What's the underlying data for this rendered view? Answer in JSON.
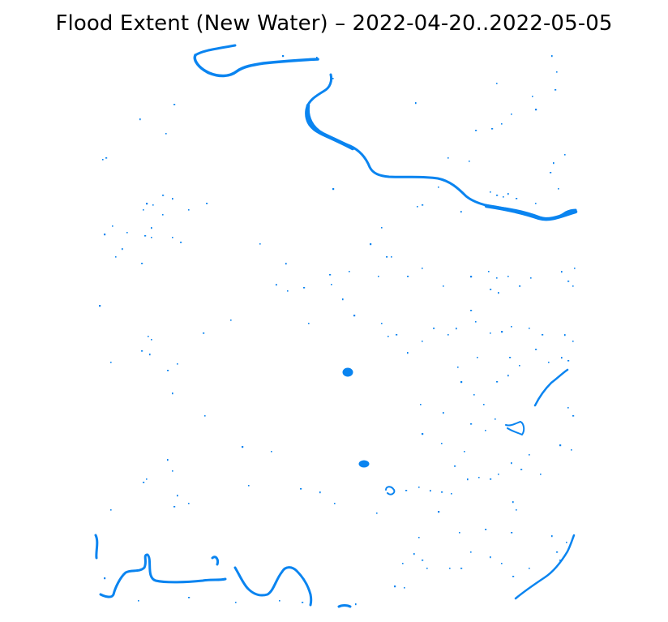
{
  "title": "Flood Extent (New Water) – 2022-04-20..2022-05-05",
  "colors": {
    "water": "#0a84f0",
    "background": "#ffffff"
  },
  "layers": {
    "new_water": {
      "name": "new-water-layer"
    }
  }
}
